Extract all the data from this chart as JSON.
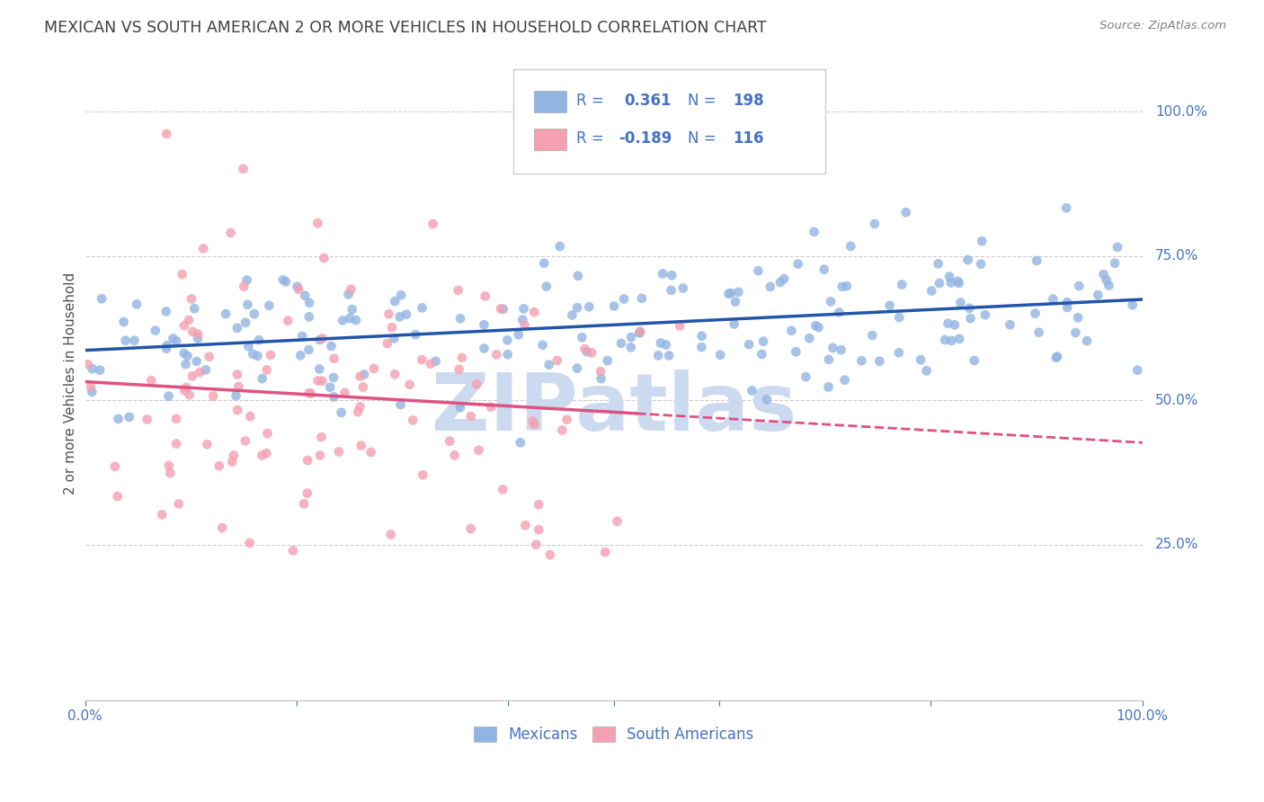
{
  "title": "MEXICAN VS SOUTH AMERICAN 2 OR MORE VEHICLES IN HOUSEHOLD CORRELATION CHART",
  "source": "Source: ZipAtlas.com",
  "ylabel": "2 or more Vehicles in Household",
  "ytick_labels": [
    "25.0%",
    "50.0%",
    "75.0%",
    "100.0%"
  ],
  "ytick_positions": [
    0.25,
    0.5,
    0.75,
    1.0
  ],
  "xlim": [
    0.0,
    1.0
  ],
  "ylim": [
    -0.02,
    1.08
  ],
  "mexican_R": 0.361,
  "mexican_N": 198,
  "south_american_R": -0.189,
  "south_american_N": 116,
  "mexican_color": "#92b4e3",
  "south_american_color": "#f4a0b0",
  "mexican_line_color": "#2255aa",
  "south_american_line_color": "#e05080",
  "watermark_text": "ZIPatlas",
  "watermark_color": "#ccdaf0",
  "background_color": "#ffffff",
  "grid_color": "#cccccc",
  "title_color": "#404040",
  "axis_label_color": "#4472c4",
  "legend_text_color": "#4472c4",
  "seed": 99
}
